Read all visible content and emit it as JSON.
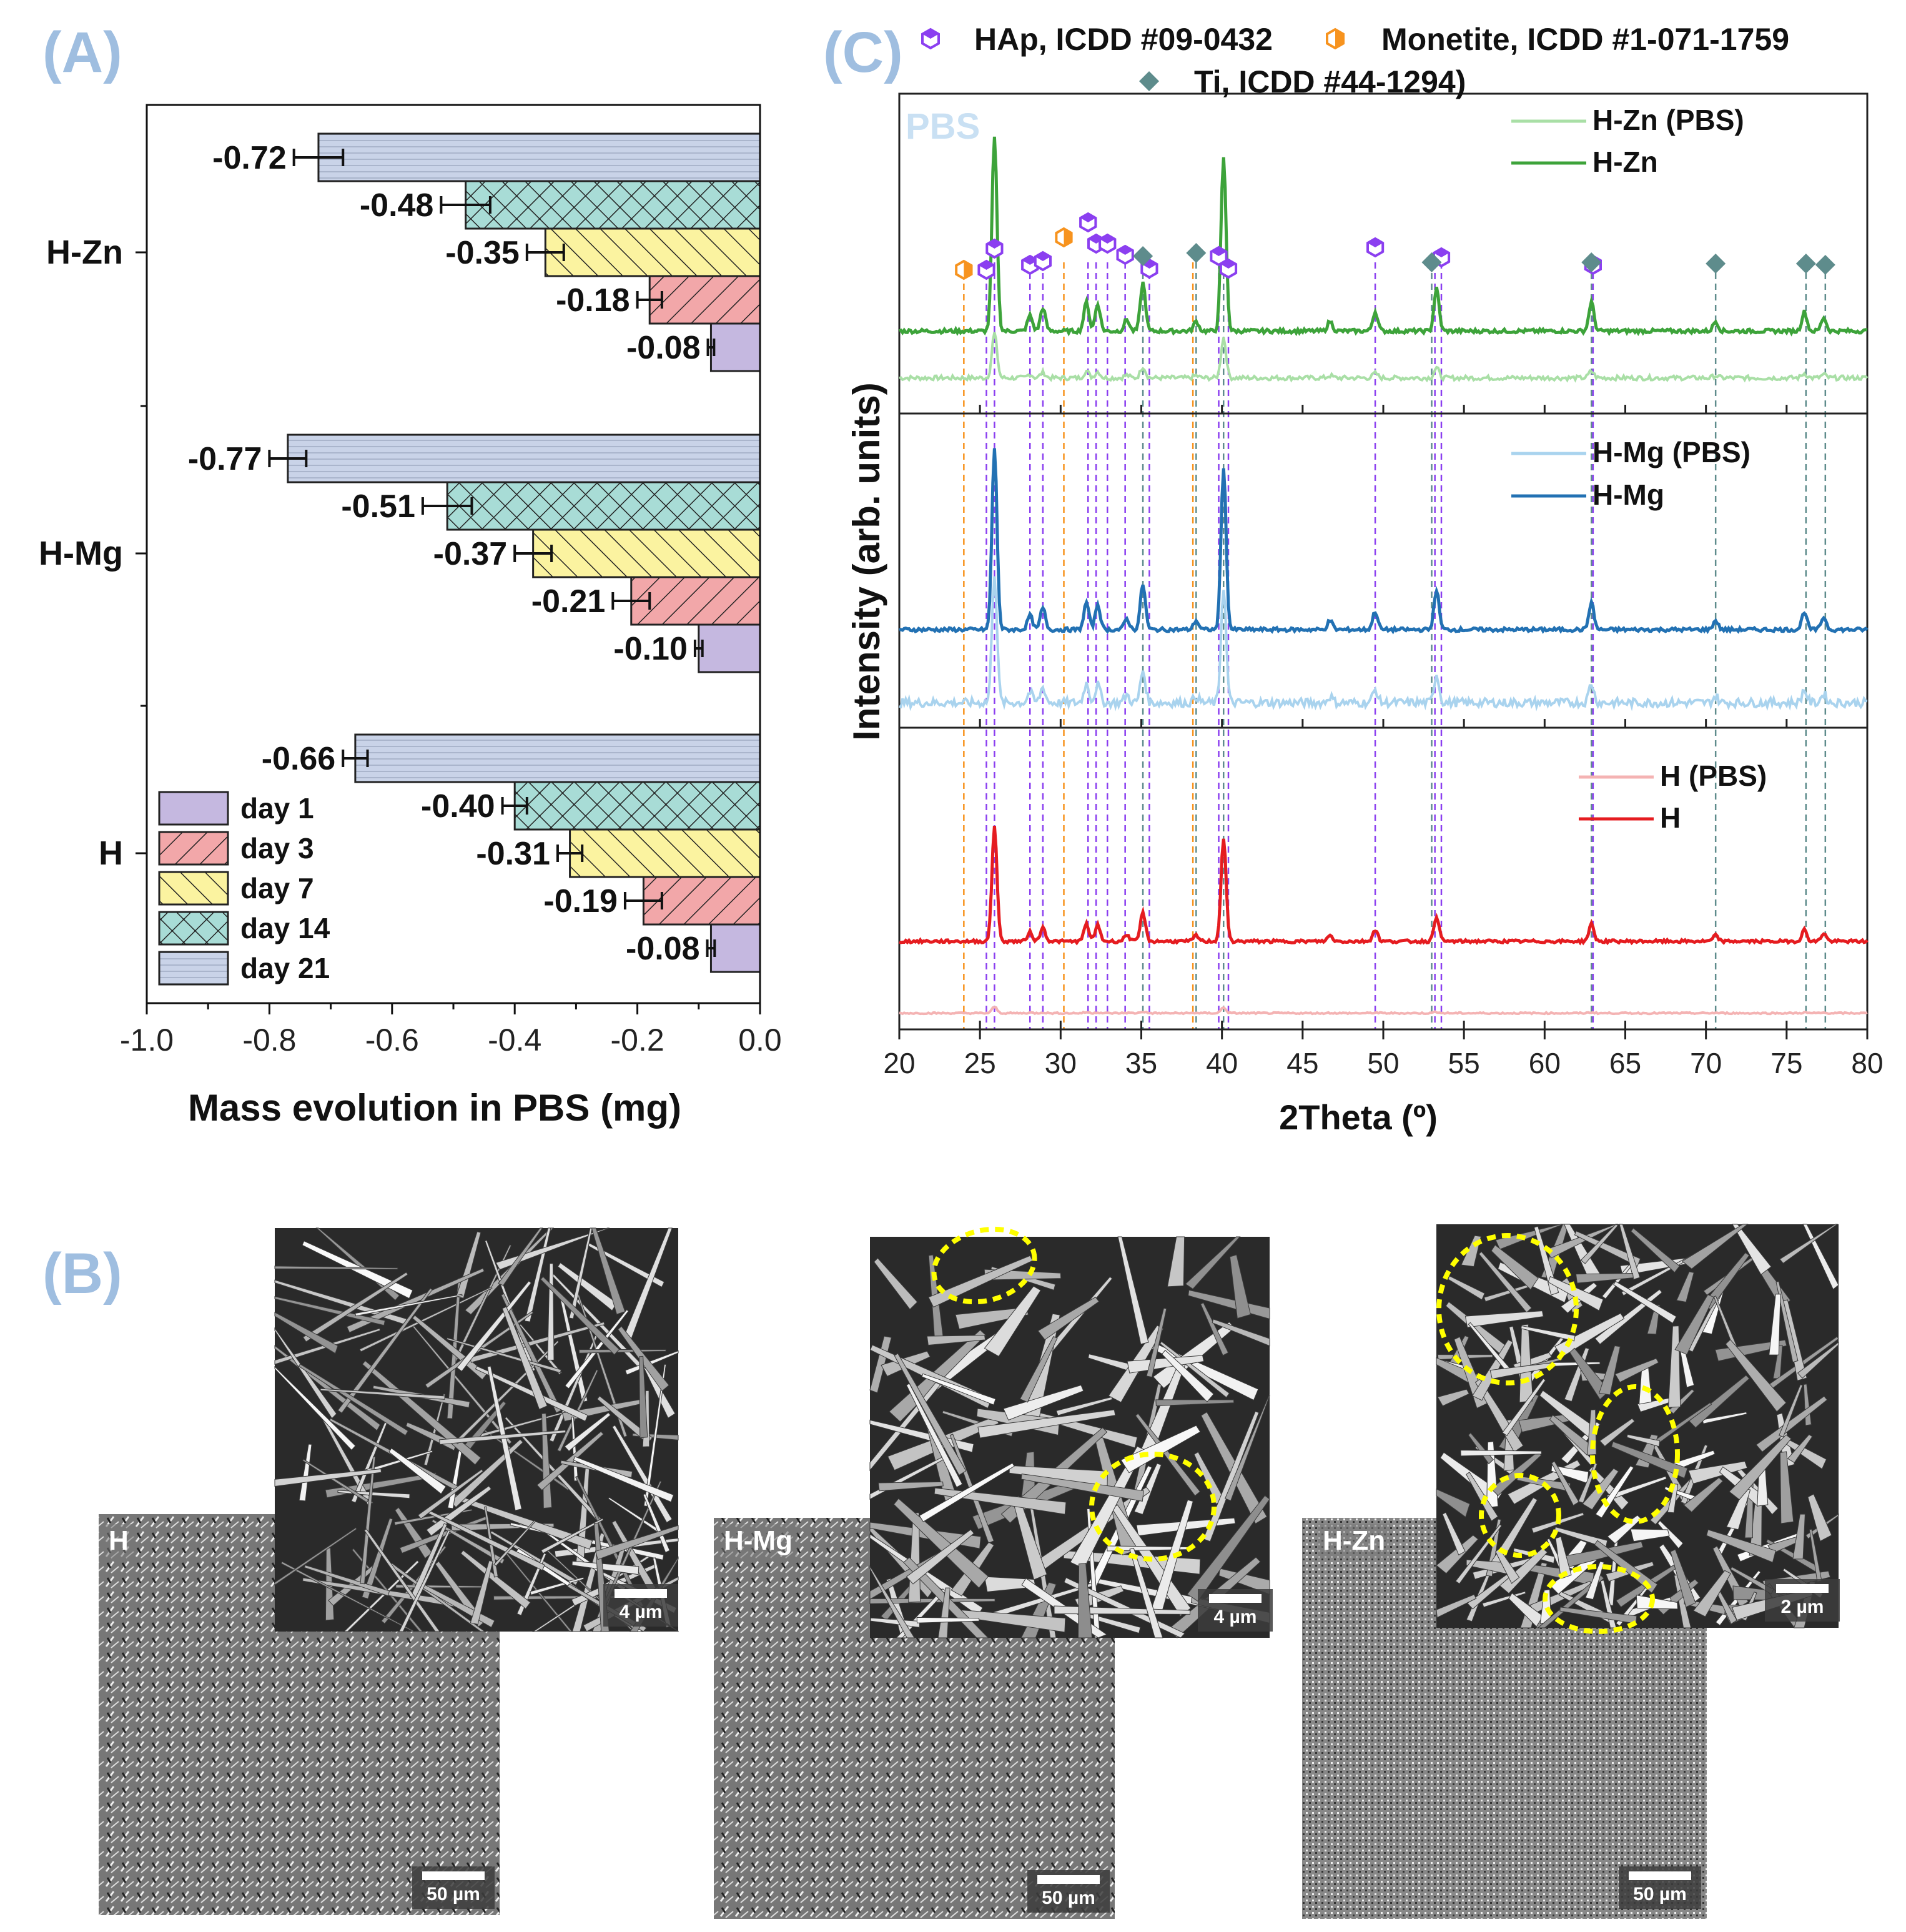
{
  "panel_labels": {
    "a": "(A)",
    "b": "(B)",
    "c": "(C)"
  },
  "chart_data": [
    {
      "type": "bar",
      "orientation": "horizontal",
      "title": "(A)",
      "xlabel": "Mass evolution in PBS (mg)",
      "ylabel": "",
      "categories": [
        "H-Zn",
        "H-Mg",
        "H"
      ],
      "xlim": [
        -1.0,
        0.0
      ],
      "xticks": [
        "-1.0",
        "-0.8",
        "-0.6",
        "-0.4",
        "-0.2",
        "0.0"
      ],
      "series": [
        {
          "name": "day 1",
          "values": [
            -0.08,
            -0.1,
            -0.08
          ],
          "labels": [
            "-0.08",
            "-0.10",
            "-0.08"
          ],
          "errors": [
            0.005,
            0.006,
            0.006
          ],
          "color": "#c5b8e0",
          "pattern": "none"
        },
        {
          "name": "day 3",
          "values": [
            -0.18,
            -0.21,
            -0.19
          ],
          "labels": [
            "-0.18",
            "-0.21",
            "-0.19"
          ],
          "errors": [
            0.02,
            0.03,
            0.03
          ],
          "color": "#f2a7a9",
          "pattern": "diag"
        },
        {
          "name": "day 7",
          "values": [
            -0.35,
            -0.37,
            -0.31
          ],
          "labels": [
            "-0.35",
            "-0.37",
            "-0.31"
          ],
          "errors": [
            0.03,
            0.03,
            0.02
          ],
          "color": "#fbf3a0",
          "pattern": "diag-back"
        },
        {
          "name": "day 14",
          "values": [
            -0.48,
            -0.51,
            -0.4
          ],
          "labels": [
            "-0.48",
            "-0.51",
            "-0.40"
          ],
          "errors": [
            0.04,
            0.04,
            0.02
          ],
          "color": "#a8dcd6",
          "pattern": "cross"
        },
        {
          "name": "day 21",
          "values": [
            -0.72,
            -0.77,
            -0.66
          ],
          "labels": [
            "-0.72",
            "-0.77",
            "-0.66"
          ],
          "errors": [
            0.04,
            0.03,
            0.02
          ],
          "color": "#c9d3e8",
          "pattern": "hlines"
        }
      ],
      "legend_position": "bottom-left"
    },
    {
      "type": "line",
      "title": "(C)",
      "xlabel": "2Theta (º)",
      "ylabel": "Intensity (arb. units)",
      "xlim": [
        20,
        80
      ],
      "xticks": [
        "20",
        "25",
        "30",
        "35",
        "40",
        "45",
        "50",
        "55",
        "60",
        "65",
        "70",
        "75",
        "80"
      ],
      "annotation": "PBS",
      "phase_legend": [
        {
          "name": "HAp, ICDD #09-0432",
          "marker": "hexagon",
          "color": "#8b3ff0"
        },
        {
          "name": "Monetite, ICDD #1-071-1759",
          "marker": "half-hexagon",
          "color": "#f7931e"
        },
        {
          "name": "Ti, ICDD #44-1294)",
          "marker": "diamond",
          "color": "#5e8c8c"
        }
      ],
      "reference_lines": {
        "HAp": [
          25.4,
          25.9,
          28.1,
          28.9,
          31.7,
          32.2,
          32.9,
          34.0,
          35.5,
          39.8,
          40.4,
          49.5,
          53.2,
          53.6,
          63.0
        ],
        "Monetite": [
          24.0,
          30.2,
          38.2
        ],
        "Ti": [
          35.1,
          38.4,
          40.1,
          53.0,
          62.9,
          70.6,
          76.2,
          77.4
        ]
      },
      "peaks": [
        {
          "x": 25.9,
          "h": 1.0
        },
        {
          "x": 28.1,
          "h": 0.08
        },
        {
          "x": 28.9,
          "h": 0.12
        },
        {
          "x": 31.6,
          "h": 0.15
        },
        {
          "x": 32.3,
          "h": 0.14
        },
        {
          "x": 34.1,
          "h": 0.06
        },
        {
          "x": 35.1,
          "h": 0.25
        },
        {
          "x": 38.4,
          "h": 0.05
        },
        {
          "x": 40.1,
          "h": 0.9
        },
        {
          "x": 46.7,
          "h": 0.05
        },
        {
          "x": 49.5,
          "h": 0.1
        },
        {
          "x": 53.3,
          "h": 0.22
        },
        {
          "x": 62.9,
          "h": 0.15
        },
        {
          "x": 70.6,
          "h": 0.05
        },
        {
          "x": 76.1,
          "h": 0.1
        },
        {
          "x": 77.3,
          "h": 0.07
        }
      ],
      "panels": [
        {
          "name": "H-Zn",
          "series": [
            {
              "name": "H-Zn  (PBS)",
              "color": "#a9dfa6"
            },
            {
              "name": "H-Zn",
              "color": "#3da33a"
            }
          ],
          "scales": [
            0.6,
            1.0
          ]
        },
        {
          "name": "H-Mg",
          "series": [
            {
              "name": "H-Mg  (PBS)",
              "color": "#a9d3ee"
            },
            {
              "name": "H-Mg",
              "color": "#2271b3"
            }
          ],
          "scales": [
            0.9,
            1.0
          ]
        },
        {
          "name": "H",
          "series": [
            {
              "name": "H (PBS)",
              "color": "#f4b3b3"
            },
            {
              "name": "H",
              "color": "#e51c20"
            }
          ],
          "scales": [
            0.25,
            0.8
          ]
        }
      ]
    }
  ],
  "sem": [
    {
      "name": "H",
      "label": "H",
      "scale_low": "50 µm",
      "scale_high": "4 µm"
    },
    {
      "name": "H-Mg",
      "label": "H-Mg",
      "scale_low": "50 µm",
      "scale_high": "4 µm"
    },
    {
      "name": "H-Zn",
      "label": "H-Zn",
      "scale_low": "50 µm",
      "scale_high": "2 µm"
    }
  ],
  "colors": {
    "panel_label": "#9fbee0",
    "highlight": "#ffff00"
  }
}
